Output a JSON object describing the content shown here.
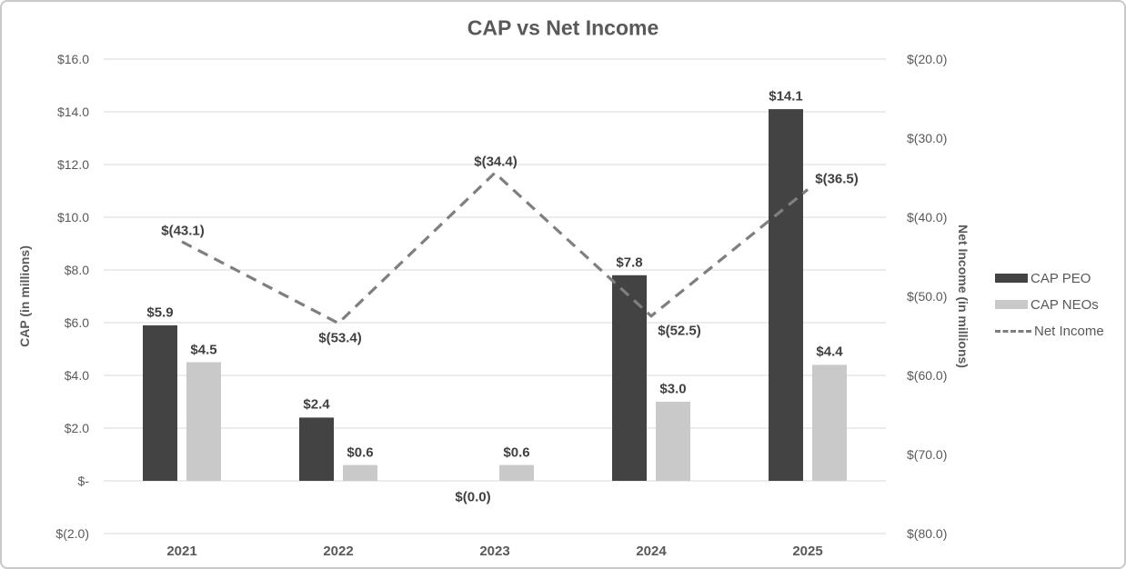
{
  "window": {
    "background": "#ffffff",
    "border_color": "#c9c9c9"
  },
  "chart_data": {
    "type": "combo-bar-line",
    "title": "CAP vs Net Income",
    "categories": [
      "2021",
      "2022",
      "2023",
      "2024",
      "2025"
    ],
    "series": [
      {
        "name": "CAP PEO",
        "type": "bar",
        "axis": "left",
        "color": "#434343",
        "values": [
          5.9,
          2.4,
          0.0,
          7.8,
          14.1
        ],
        "labels": [
          "$5.9",
          "$2.4",
          "$(0.0)",
          "$7.8",
          "$14.1"
        ]
      },
      {
        "name": "CAP NEOs",
        "type": "bar",
        "axis": "left",
        "color": "#c9c9c9",
        "values": [
          4.5,
          0.6,
          0.6,
          3.0,
          4.4
        ],
        "labels": [
          "$4.5",
          "$0.6",
          "$0.6",
          "$3.0",
          "$4.4"
        ]
      },
      {
        "name": "Net Income",
        "type": "dashed-line",
        "axis": "right",
        "color": "#7f7f7f",
        "values": [
          -43.1,
          -53.4,
          -34.4,
          -52.5,
          -36.5
        ],
        "labels": [
          "$(43.1)",
          "$(53.4)",
          "$(34.4)",
          "$(52.5)",
          "$(36.5)"
        ],
        "label_placements": [
          {
            "pos": "above",
            "dx": 1
          },
          {
            "pos": "below",
            "dx": 2
          },
          {
            "pos": "above",
            "dx": 1
          },
          {
            "pos": "below",
            "dx": 31
          },
          {
            "pos": "above",
            "dx": 32
          }
        ]
      }
    ],
    "left_axis": {
      "title": "CAP (in millions)",
      "range": [
        -2,
        16
      ],
      "ticks": [
        {
          "v": 16,
          "label": "$16.0"
        },
        {
          "v": 14,
          "label": "$14.0"
        },
        {
          "v": 12,
          "label": "$12.0"
        },
        {
          "v": 10,
          "label": "$10.0"
        },
        {
          "v": 8,
          "label": "$8.0"
        },
        {
          "v": 6,
          "label": "$6.0"
        },
        {
          "v": 4,
          "label": "$4.0"
        },
        {
          "v": 2,
          "label": "$2.0"
        },
        {
          "v": 0,
          "label": "$-"
        },
        {
          "v": -2,
          "label": "$(2.0)"
        }
      ]
    },
    "right_axis": {
      "title": "Net Income (in millions)",
      "range": [
        -80,
        -20
      ],
      "ticks": [
        {
          "v": -20,
          "label": "$(20.0)"
        },
        {
          "v": -30,
          "label": "$(30.0)"
        },
        {
          "v": -40,
          "label": "$(40.0)"
        },
        {
          "v": -50,
          "label": "$(50.0)"
        },
        {
          "v": -60,
          "label": "$(60.0)"
        },
        {
          "v": -70,
          "label": "$(70.0)"
        },
        {
          "v": -80,
          "label": "$(80.0)"
        }
      ]
    },
    "legend": {
      "position": "right",
      "entries": [
        "CAP PEO",
        "CAP NEOs",
        "Net Income"
      ]
    },
    "grid": true,
    "gridline_color": "#d9d9d9",
    "tick_text_color": "#595959",
    "data_label_color": "#404040"
  }
}
